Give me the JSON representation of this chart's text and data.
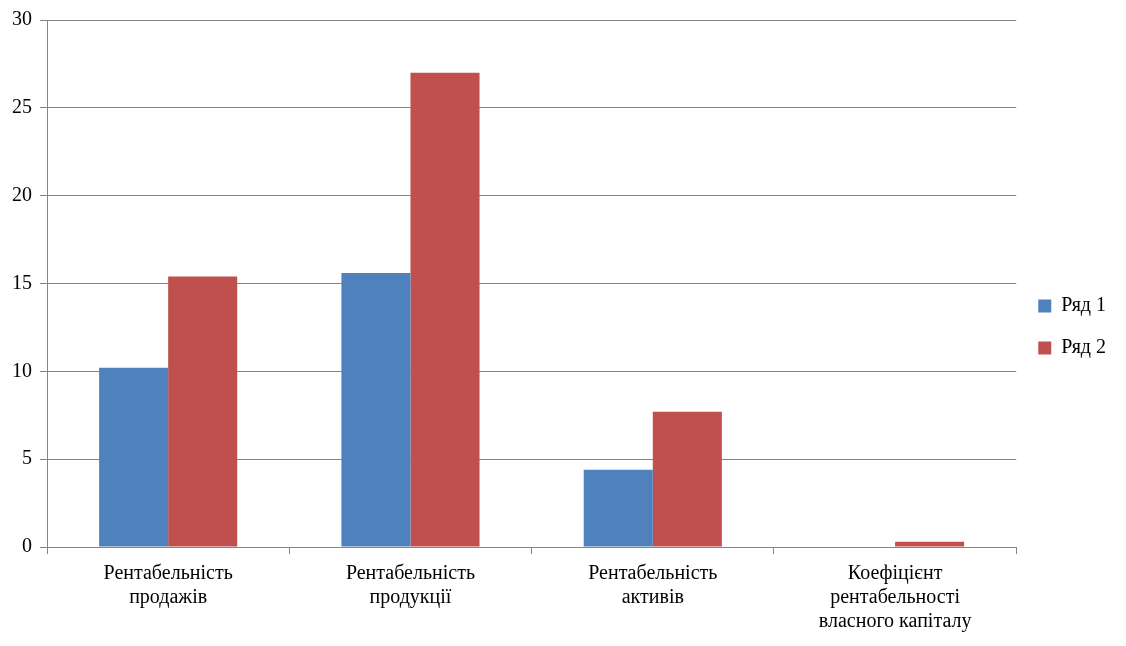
{
  "chart_data": {
    "type": "bar",
    "categories": [
      "Рентабельність продажів",
      "Рентабельність продукції",
      "Рентабельність активів",
      "Коефіцієнт рентабельності власного капіталу"
    ],
    "series": [
      {
        "name": "Ряд 1",
        "color": "#4f81bd",
        "values": [
          10.2,
          15.6,
          4.4,
          0
        ]
      },
      {
        "name": "Ряд 2",
        "color": "#c0504d",
        "values": [
          15.4,
          27,
          7.7,
          0.3
        ]
      }
    ],
    "ylim": [
      0,
      30
    ],
    "yticks": [
      0,
      5,
      10,
      15,
      20,
      25,
      30
    ],
    "grid": "y",
    "legend": "right"
  }
}
